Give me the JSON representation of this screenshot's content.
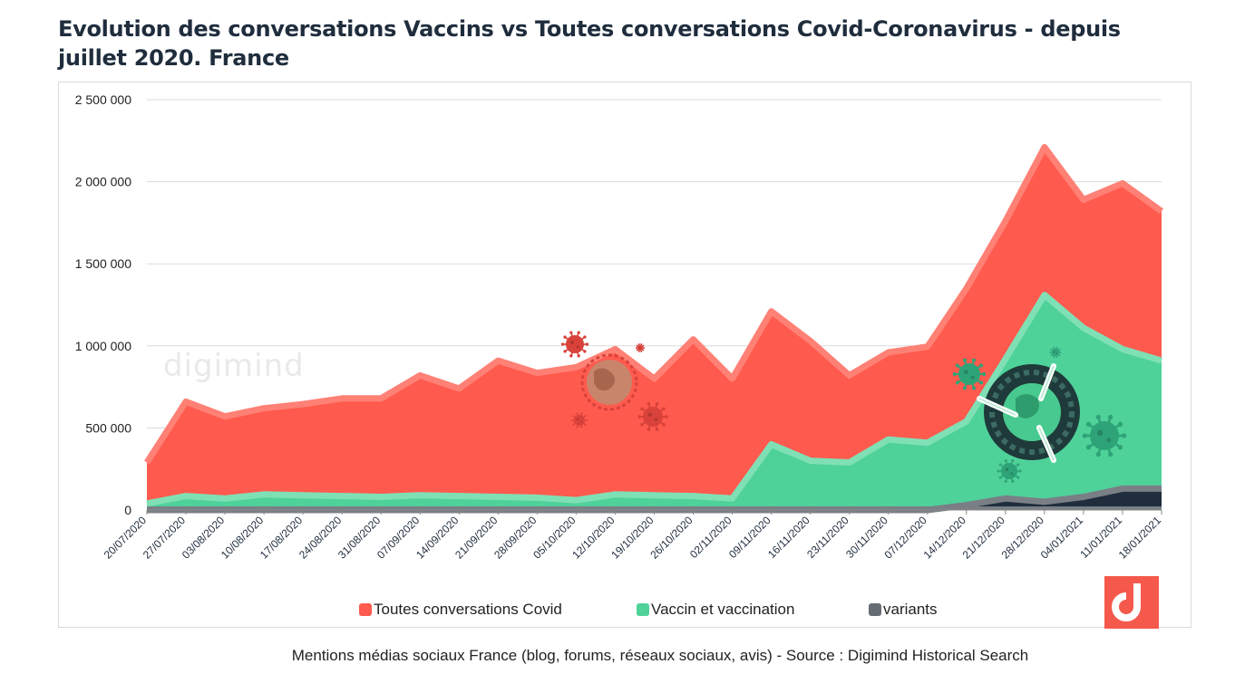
{
  "title": "Evolution des conversations Vaccins  vs Toutes conversations Covid-Coronavirus - depuis juillet 2020. France",
  "source_note": "Mentions médias sociaux France  (blog, forums, réseaux sociaux, avis) - Source : Digimind Historical Search",
  "watermark": "digimind",
  "colors": {
    "covid": "#ff5a4e",
    "covid_edge": "#ff8075",
    "vaccin": "#4fd19a",
    "vaccin_edge": "#7fe0b5",
    "variants": "#1f2d3d",
    "variants_edge": "#7a7f86",
    "logo": "#f4594c"
  },
  "chart_data": {
    "type": "area",
    "title": "Evolution des conversations Vaccins  vs Toutes conversations Covid-Coronavirus - depuis juillet 2020. France",
    "xlabel": "",
    "ylabel": "",
    "ylim": [
      0,
      2500000
    ],
    "y_ticks": [
      "0",
      "500 000",
      "1 000 000",
      "1 500 000",
      "2 000 000",
      "2 500 000"
    ],
    "grid": true,
    "legend_position": "bottom",
    "categories": [
      "20/07/2020",
      "27/07/2020",
      "03/08/2020",
      "10/08/2020",
      "17/08/2020",
      "24/08/2020",
      "31/08/2020",
      "07/09/2020",
      "14/09/2020",
      "21/09/2020",
      "28/09/2020",
      "05/10/2020",
      "12/10/2020",
      "19/10/2020",
      "26/10/2020",
      "02/11/2020",
      "09/11/2020",
      "16/11/2020",
      "23/11/2020",
      "30/11/2020",
      "07/12/2020",
      "14/12/2020",
      "21/12/2020",
      "28/12/2020",
      "04/01/2021",
      "11/01/2021",
      "18/01/2021"
    ],
    "series": [
      {
        "name": "Toutes conversations Covid",
        "values": [
          290000,
          660000,
          570000,
          620000,
          645000,
          680000,
          680000,
          820000,
          740000,
          910000,
          835000,
          870000,
          980000,
          800000,
          1040000,
          800000,
          1210000,
          1030000,
          820000,
          960000,
          995000,
          1350000,
          1760000,
          2210000,
          1890000,
          1990000,
          1820000
        ]
      },
      {
        "name": "Vaccin et vaccination",
        "values": [
          40000,
          85000,
          70000,
          95000,
          90000,
          85000,
          80000,
          90000,
          85000,
          80000,
          75000,
          60000,
          95000,
          90000,
          85000,
          70000,
          400000,
          300000,
          290000,
          430000,
          410000,
          540000,
          920000,
          1310000,
          1110000,
          980000,
          910000
        ]
      },
      {
        "name": "variants",
        "values": [
          0,
          0,
          0,
          0,
          0,
          0,
          0,
          0,
          0,
          0,
          0,
          0,
          0,
          0,
          0,
          0,
          0,
          0,
          0,
          0,
          0,
          30000,
          70000,
          50000,
          80000,
          130000,
          130000
        ]
      }
    ]
  },
  "legend": [
    {
      "label": "Toutes conversations Covid"
    },
    {
      "label": "Vaccin et vaccination"
    },
    {
      "label": "variants"
    }
  ]
}
